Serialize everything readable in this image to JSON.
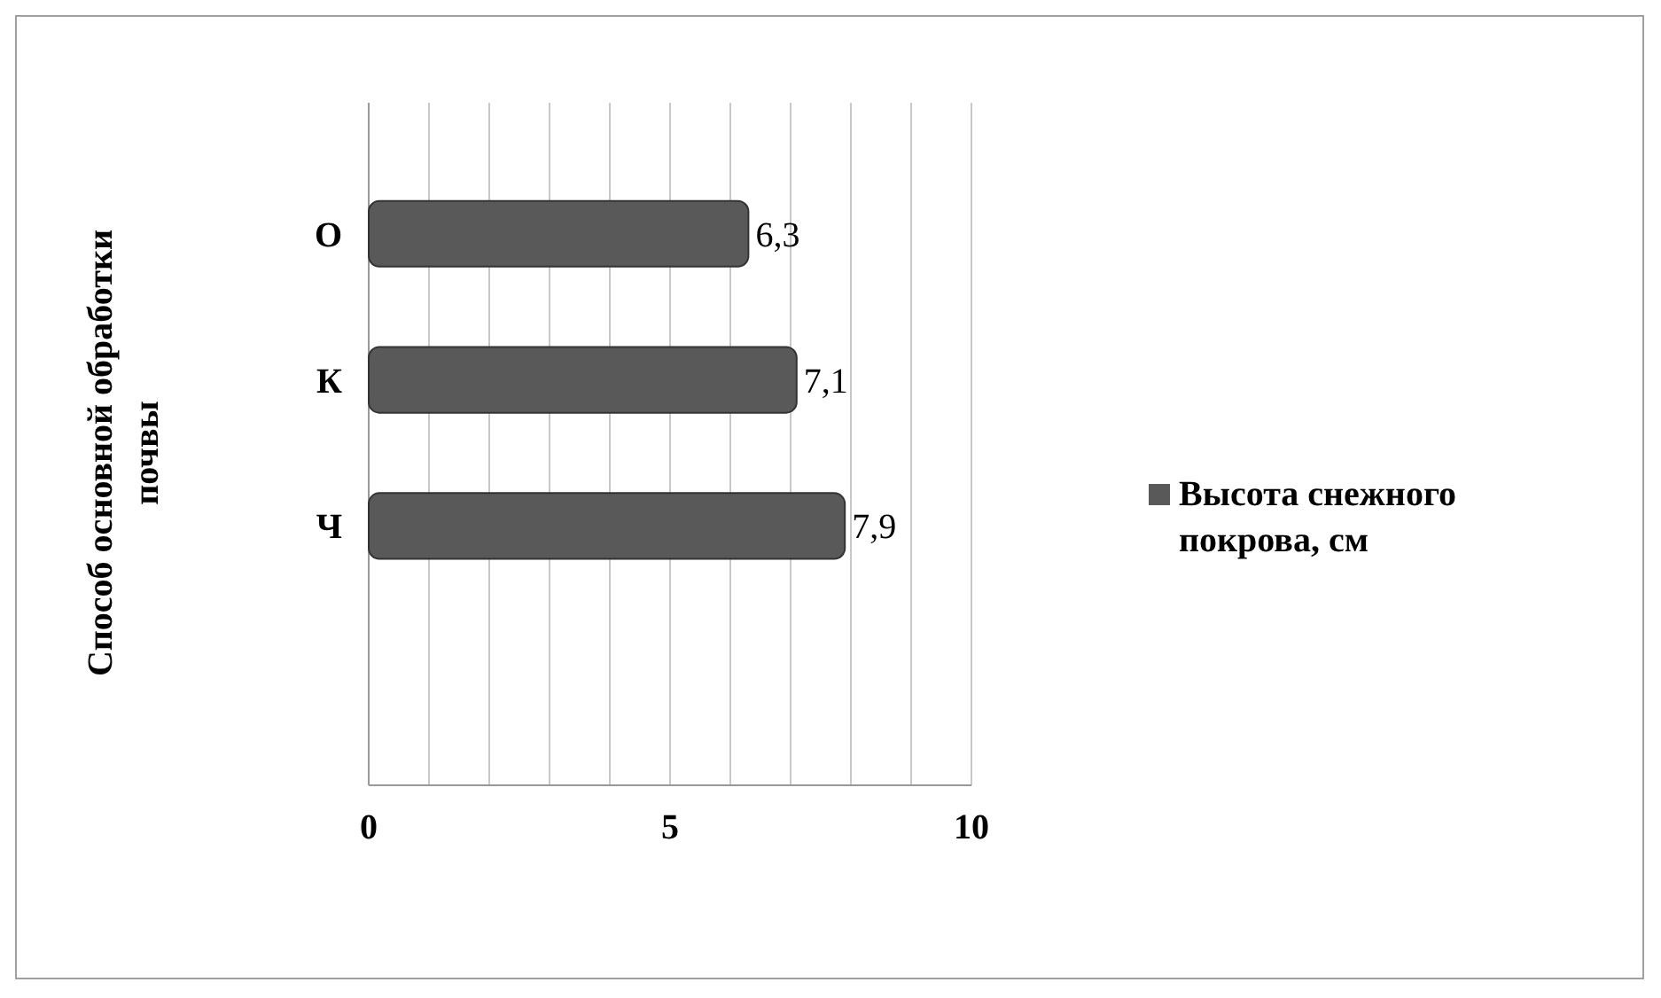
{
  "chart_data": {
    "type": "bar",
    "orientation": "horizontal",
    "ylabel": "Способ основной обработки почвы",
    "categories": [
      "О",
      "К",
      "Ч",
      null
    ],
    "series": [
      {
        "name": "Высота снежного покрова, см",
        "color": "#595959",
        "values": [
          6.3,
          7.1,
          7.9,
          0
        ],
        "value_labels": [
          "6,3",
          "7,1",
          "7,9",
          null
        ]
      }
    ],
    "xlim": [
      0,
      10
    ],
    "xticks": [
      0,
      {
        "value": 1,
        "label": null
      },
      {
        "value": 2,
        "label": null
      },
      {
        "value": 3,
        "label": null
      },
      {
        "value": 4,
        "label": null
      },
      5,
      {
        "value": 6,
        "label": null
      },
      {
        "value": 7,
        "label": null
      },
      {
        "value": 8,
        "label": null
      },
      {
        "value": 9,
        "label": null
      },
      10
    ],
    "grid": "x",
    "legend": "right"
  }
}
